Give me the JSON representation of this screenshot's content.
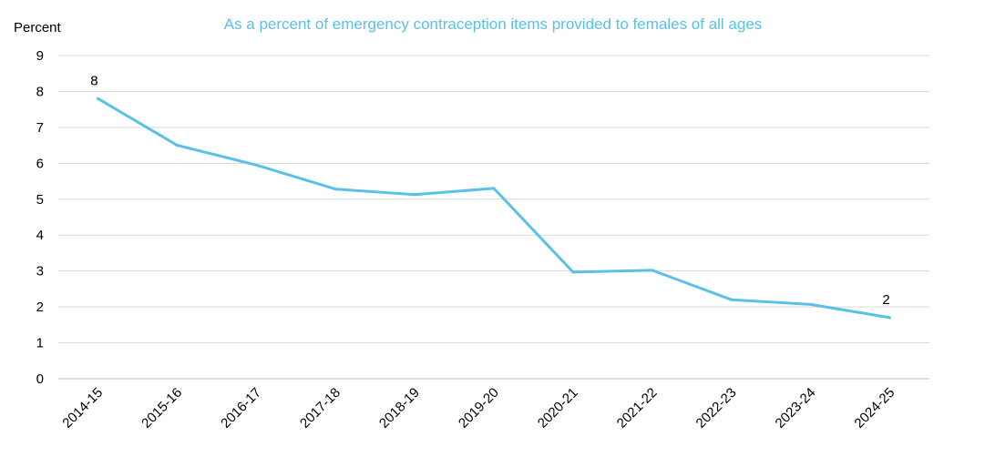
{
  "chart_data": {
    "type": "line",
    "title": "As a percent of emergency contraception items provided to females of all ages",
    "ylabel": "Percent",
    "xlabel": "",
    "ylim": [
      0,
      9
    ],
    "yticks": [
      "0",
      "1",
      "2",
      "3",
      "4",
      "5",
      "6",
      "7",
      "8",
      "9"
    ],
    "grid": true,
    "categories": [
      "2014-15",
      "2015-16",
      "2016-17",
      "2017-18",
      "2018-19",
      "2019-20",
      "2020-21",
      "2021-22",
      "2022-23",
      "2023-24",
      "2024-25"
    ],
    "series": [
      {
        "values": [
          7.8,
          6.5,
          5.95,
          5.28,
          5.13,
          5.3,
          2.97,
          3.02,
          2.2,
          2.07,
          1.7
        ],
        "color": "#5bc0e6"
      }
    ],
    "data_labels": [
      {
        "index": 0,
        "text": "8"
      },
      {
        "index": 10,
        "text": "2"
      }
    ]
  }
}
